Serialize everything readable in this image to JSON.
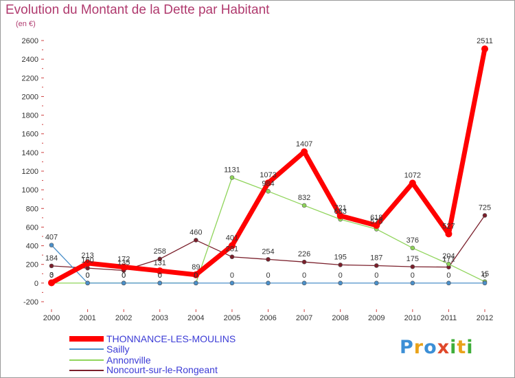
{
  "header": {
    "title": "Evolution du Montant de la Dette par Habitant",
    "subtitle": "(en €)"
  },
  "chart_data": {
    "type": "line",
    "title": "Evolution du Montant de la Dette par Habitant",
    "subtitle": "(en €)",
    "xlabel": "",
    "ylabel": "",
    "x": [
      2000,
      2001,
      2002,
      2003,
      2004,
      2005,
      2006,
      2007,
      2008,
      2009,
      2010,
      2011,
      2012
    ],
    "ylim": [
      -200,
      2600
    ],
    "yticks": [
      -200,
      0,
      200,
      400,
      600,
      800,
      1000,
      1200,
      1400,
      1600,
      1800,
      2000,
      2200,
      2400,
      2600
    ],
    "grid": false,
    "legend_position": "bottom",
    "series": [
      {
        "name": "Noncourt-sur-le-Rongeant",
        "color": "#7a1f2b",
        "values": [
          184,
          160,
          135,
          258,
          460,
          281,
          254,
          226,
          195,
          187,
          175,
          171,
          725
        ]
      },
      {
        "name": "Annonville",
        "color": "#8fd45a",
        "values": [
          0,
          0,
          0,
          0,
          0,
          1131,
          984,
          832,
          683,
          578,
          376,
          204,
          15
        ]
      },
      {
        "name": "Sailly",
        "color": "#4a8fc9",
        "values": [
          407,
          0,
          0,
          0,
          0,
          0,
          0,
          0,
          0,
          0,
          0,
          0,
          0
        ]
      },
      {
        "name": "THONNANCE-LES-MOULINS",
        "color": "#ff0000",
        "values": [
          3,
          213,
          172,
          131,
          89,
          401,
          1073,
          1407,
          721,
          618,
          1072,
          527,
          2511
        ]
      }
    ]
  },
  "legend": [
    {
      "name": "THONNANCE-LES-MOULINS",
      "color": "#ff0000"
    },
    {
      "name": "Sailly",
      "color": "#4a8fc9"
    },
    {
      "name": "Annonville",
      "color": "#8fd45a"
    },
    {
      "name": "Noncourt-sur-le-Rongeant",
      "color": "#7a1f2b"
    }
  ],
  "logo": {
    "letters": [
      "P",
      "r",
      "o",
      "x",
      "i",
      "t",
      "i"
    ],
    "colors": [
      "#3c8fd6",
      "#e9a21a",
      "#3c8fd6",
      "#e0482a",
      "#3fae3a",
      "#e9a21a",
      "#3fae3a"
    ]
  }
}
